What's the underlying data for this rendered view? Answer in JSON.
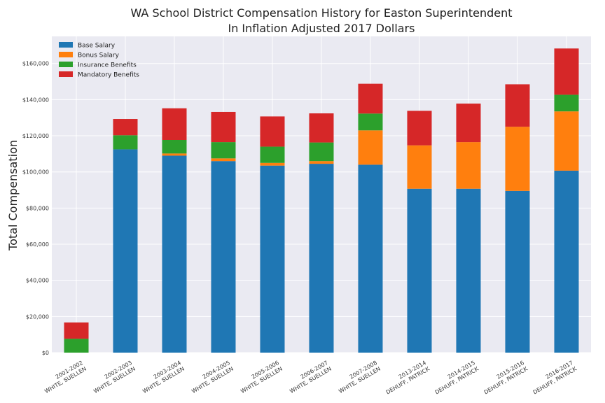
{
  "chart_data": {
    "type": "bar",
    "stacked": true,
    "title": "WA School District Compensation History for Easton Superintendent",
    "subtitle": "In Inflation Adjusted 2017 Dollars",
    "xlabel": "",
    "ylabel": "Total Compensation",
    "ylim": [
      0,
      175000
    ],
    "yticks": [
      0,
      20000,
      40000,
      60000,
      80000,
      100000,
      120000,
      140000,
      160000
    ],
    "ytick_labels": [
      "$0",
      "$20,000",
      "$40,000",
      "$60,000",
      "$80,000",
      "$100,000",
      "$120,000",
      "$140,000",
      "$160,000"
    ],
    "grid": true,
    "legend_position": "top-left",
    "categories": [
      [
        "2001-2002",
        "WHITE, SUELLEN"
      ],
      [
        "2002-2003",
        "WHITE, SUELLEN"
      ],
      [
        "2003-2004",
        "WHITE, SUELLEN"
      ],
      [
        "2004-2005",
        "WHITE, SUELLEN"
      ],
      [
        "2005-2006",
        "WHITE, SUELLEN"
      ],
      [
        "2006-2007",
        "WHITE, SUELLEN"
      ],
      [
        "2007-2008",
        "WHITE, SUELLEN"
      ],
      [
        "2013-2014",
        "DEHUFF, PATRICK"
      ],
      [
        "2014-2015",
        "DEHUFF, PATRICK"
      ],
      [
        "2015-2016",
        "DEHUFF, PATRICK"
      ],
      [
        "2016-2017",
        "DEHUFF, PATRICK"
      ]
    ],
    "series": [
      {
        "name": "Base Salary",
        "color": "#1f77b4",
        "values": [
          0,
          112500,
          109000,
          106000,
          103500,
          104500,
          104000,
          90700,
          90700,
          89500,
          100700
        ]
      },
      {
        "name": "Bonus Salary",
        "color": "#ff7f0e",
        "values": [
          0,
          0,
          1200,
          1500,
          1500,
          1500,
          19000,
          24000,
          25800,
          35500,
          32800
        ]
      },
      {
        "name": "Insurance Benefits",
        "color": "#2ca02c",
        "values": [
          7700,
          7800,
          7500,
          9000,
          9000,
          10300,
          9300,
          0,
          0,
          0,
          9200
        ]
      },
      {
        "name": "Mandatory Benefits",
        "color": "#d62728",
        "values": [
          9000,
          9000,
          17500,
          16700,
          16700,
          16100,
          16500,
          19100,
          21300,
          23500,
          25600
        ]
      }
    ]
  }
}
